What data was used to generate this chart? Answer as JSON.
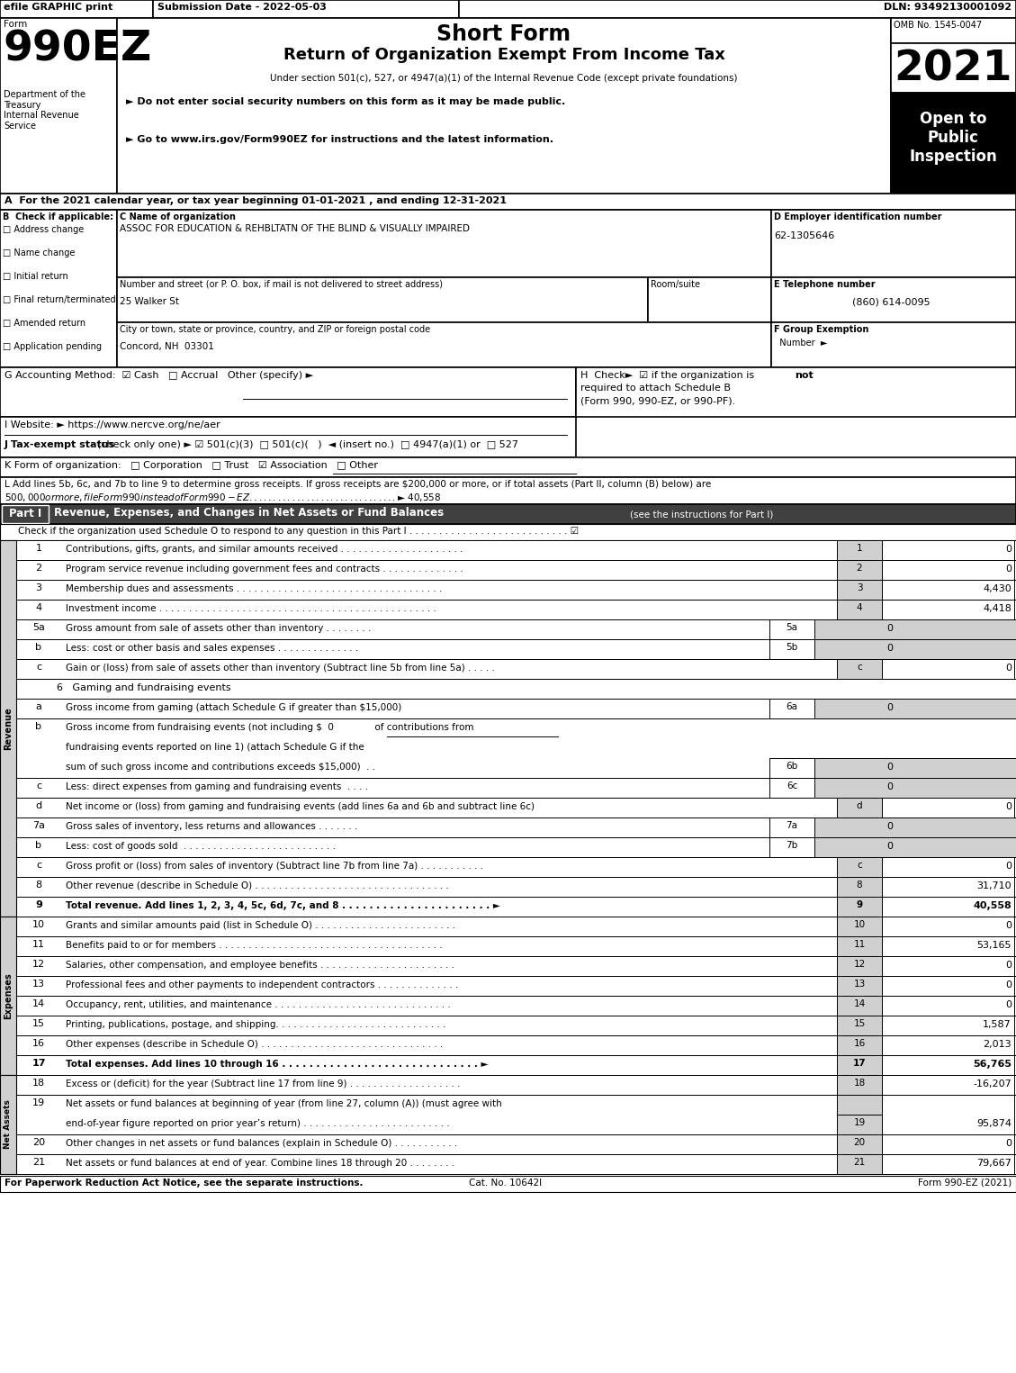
{
  "title": "Short Form",
  "subtitle": "Return of Organization Exempt From Income Tax",
  "year": "2021",
  "omb": "OMB No. 1545-0047",
  "efile_text": "efile GRAPHIC print",
  "submission_date": "Submission Date - 2022-05-03",
  "dln": "DLN: 93492130001092",
  "form_label": "Form",
  "form_number": "990EZ",
  "under_section": "Under section 501(c), 527, or 4947(a)(1) of the Internal Revenue Code (except private foundations)",
  "ssn_notice": "► Do not enter social security numbers on this form as it may be made public.",
  "website_notice": "► Go to www.irs.gov/Form990EZ for instructions and the latest information.",
  "open_to": "Open to\nPublic\nInspection",
  "dept_text": "Department of the\nTreasury\nInternal Revenue\nService",
  "year_line": "A  For the 2021 calendar year, or tax year beginning 01-01-2021 , and ending 12-31-2021",
  "checkboxes_b": [
    "Address change",
    "Name change",
    "Initial return",
    "Final return/terminated",
    "Amended return",
    "Application pending"
  ],
  "org_name_label": "C Name of organization",
  "org_name": "ASSOC FOR EDUCATION & REHBLTATN OF THE BLIND & VISUALLY IMPAIRED",
  "ein_label": "D Employer identification number",
  "ein": "62-1305646",
  "address_label": "Number and street (or P. O. box, if mail is not delivered to street address)",
  "room_label": "Room/suite",
  "address": "25 Walker St",
  "phone_label": "E Telephone number",
  "phone": "(860) 614-0095",
  "city_label": "City or town, state or province, country, and ZIP or foreign postal code",
  "city": "Concord, NH  03301",
  "revenue_lines": [
    {
      "num": "1",
      "text": "Contributions, gifts, grants, and similar amounts received . . . . . . . . . . . . . . . . . . . . .",
      "value": "0",
      "bold": false
    },
    {
      "num": "2",
      "text": "Program service revenue including government fees and contracts . . . . . . . . . . . . . .",
      "value": "0",
      "bold": false
    },
    {
      "num": "3",
      "text": "Membership dues and assessments . . . . . . . . . . . . . . . . . . . . . . . . . . . . . . . . . . .",
      "value": "4,430",
      "bold": false
    },
    {
      "num": "4",
      "text": "Investment income . . . . . . . . . . . . . . . . . . . . . . . . . . . . . . . . . . . . . . . . . . . . . . .",
      "value": "4,418",
      "bold": false
    }
  ],
  "expense_lines": [
    {
      "num": "10",
      "text": "Grants and similar amounts paid (list in Schedule O) . . . . . . . . . . . . . . . . . . . . . . . .",
      "value": "0"
    },
    {
      "num": "11",
      "text": "Benefits paid to or for members . . . . . . . . . . . . . . . . . . . . . . . . . . . . . . . . . . . . . .",
      "value": "53,165"
    },
    {
      "num": "12",
      "text": "Salaries, other compensation, and employee benefits . . . . . . . . . . . . . . . . . . . . . . .",
      "value": "0"
    },
    {
      "num": "13",
      "text": "Professional fees and other payments to independent contractors . . . . . . . . . . . . . .",
      "value": "0"
    },
    {
      "num": "14",
      "text": "Occupancy, rent, utilities, and maintenance . . . . . . . . . . . . . . . . . . . . . . . . . . . . . .",
      "value": "0"
    },
    {
      "num": "15",
      "text": "Printing, publications, postage, and shipping. . . . . . . . . . . . . . . . . . . . . . . . . . . . .",
      "value": "1,587"
    },
    {
      "num": "16",
      "text": "Other expenses (describe in Schedule O) . . . . . . . . . . . . . . . . . . . . . . . . . . . . . . .",
      "value": "2,013"
    },
    {
      "num": "17",
      "text": "Total expenses. Add lines 10 through 16 . . . . . . . . . . . . . . . . . . . . . . . . . . . . . ►",
      "value": "56,765",
      "bold": true
    }
  ],
  "net_assets_lines": [
    {
      "num": "18",
      "text": "Excess or (deficit) for the year (Subtract line 17 from line 9) . . . . . . . . . . . . . . . . . . .",
      "value": "-16,207",
      "two_line": false
    },
    {
      "num": "19",
      "text": "Net assets or fund balances at beginning of year (from line 27, column (A)) (must agree with",
      "text2": "end-of-year figure reported on prior year’s return) . . . . . . . . . . . . . . . . . . . . . . . . .",
      "value": "95,874",
      "two_line": true
    },
    {
      "num": "20",
      "text": "Other changes in net assets or fund balances (explain in Schedule O) . . . . . . . . . . .",
      "value": "0",
      "two_line": false
    },
    {
      "num": "21",
      "text": "Net assets or fund balances at end of year. Combine lines 18 through 20 . . . . . . . .",
      "value": "79,667",
      "two_line": false
    }
  ],
  "footer_left": "For Paperwork Reduction Act Notice, see the separate instructions.",
  "footer_cat": "Cat. No. 10642I",
  "footer_right": "Form 990-EZ (2021)"
}
